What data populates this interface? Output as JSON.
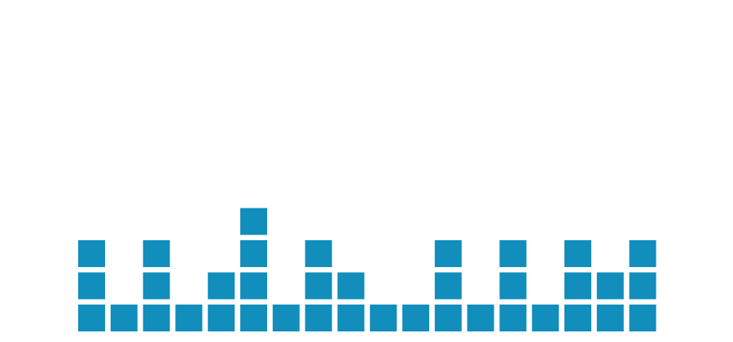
{
  "chart_data": {
    "type": "bar",
    "style": "stacked-unit-squares",
    "categories": [
      "",
      "",
      "",
      "",
      "",
      "",
      "",
      "",
      "",
      "",
      "",
      "",
      "",
      "",
      "",
      "",
      "",
      ""
    ],
    "values": [
      3,
      1,
      3,
      1,
      2,
      4,
      1,
      3,
      2,
      1,
      1,
      3,
      1,
      3,
      1,
      3,
      2,
      3
    ],
    "title": "",
    "xlabel": "",
    "ylabel": "",
    "ylim": [
      0,
      4
    ],
    "grid": false,
    "legend": "none",
    "colors": {
      "bar": "#118ebc",
      "background": "#ffffff"
    }
  }
}
